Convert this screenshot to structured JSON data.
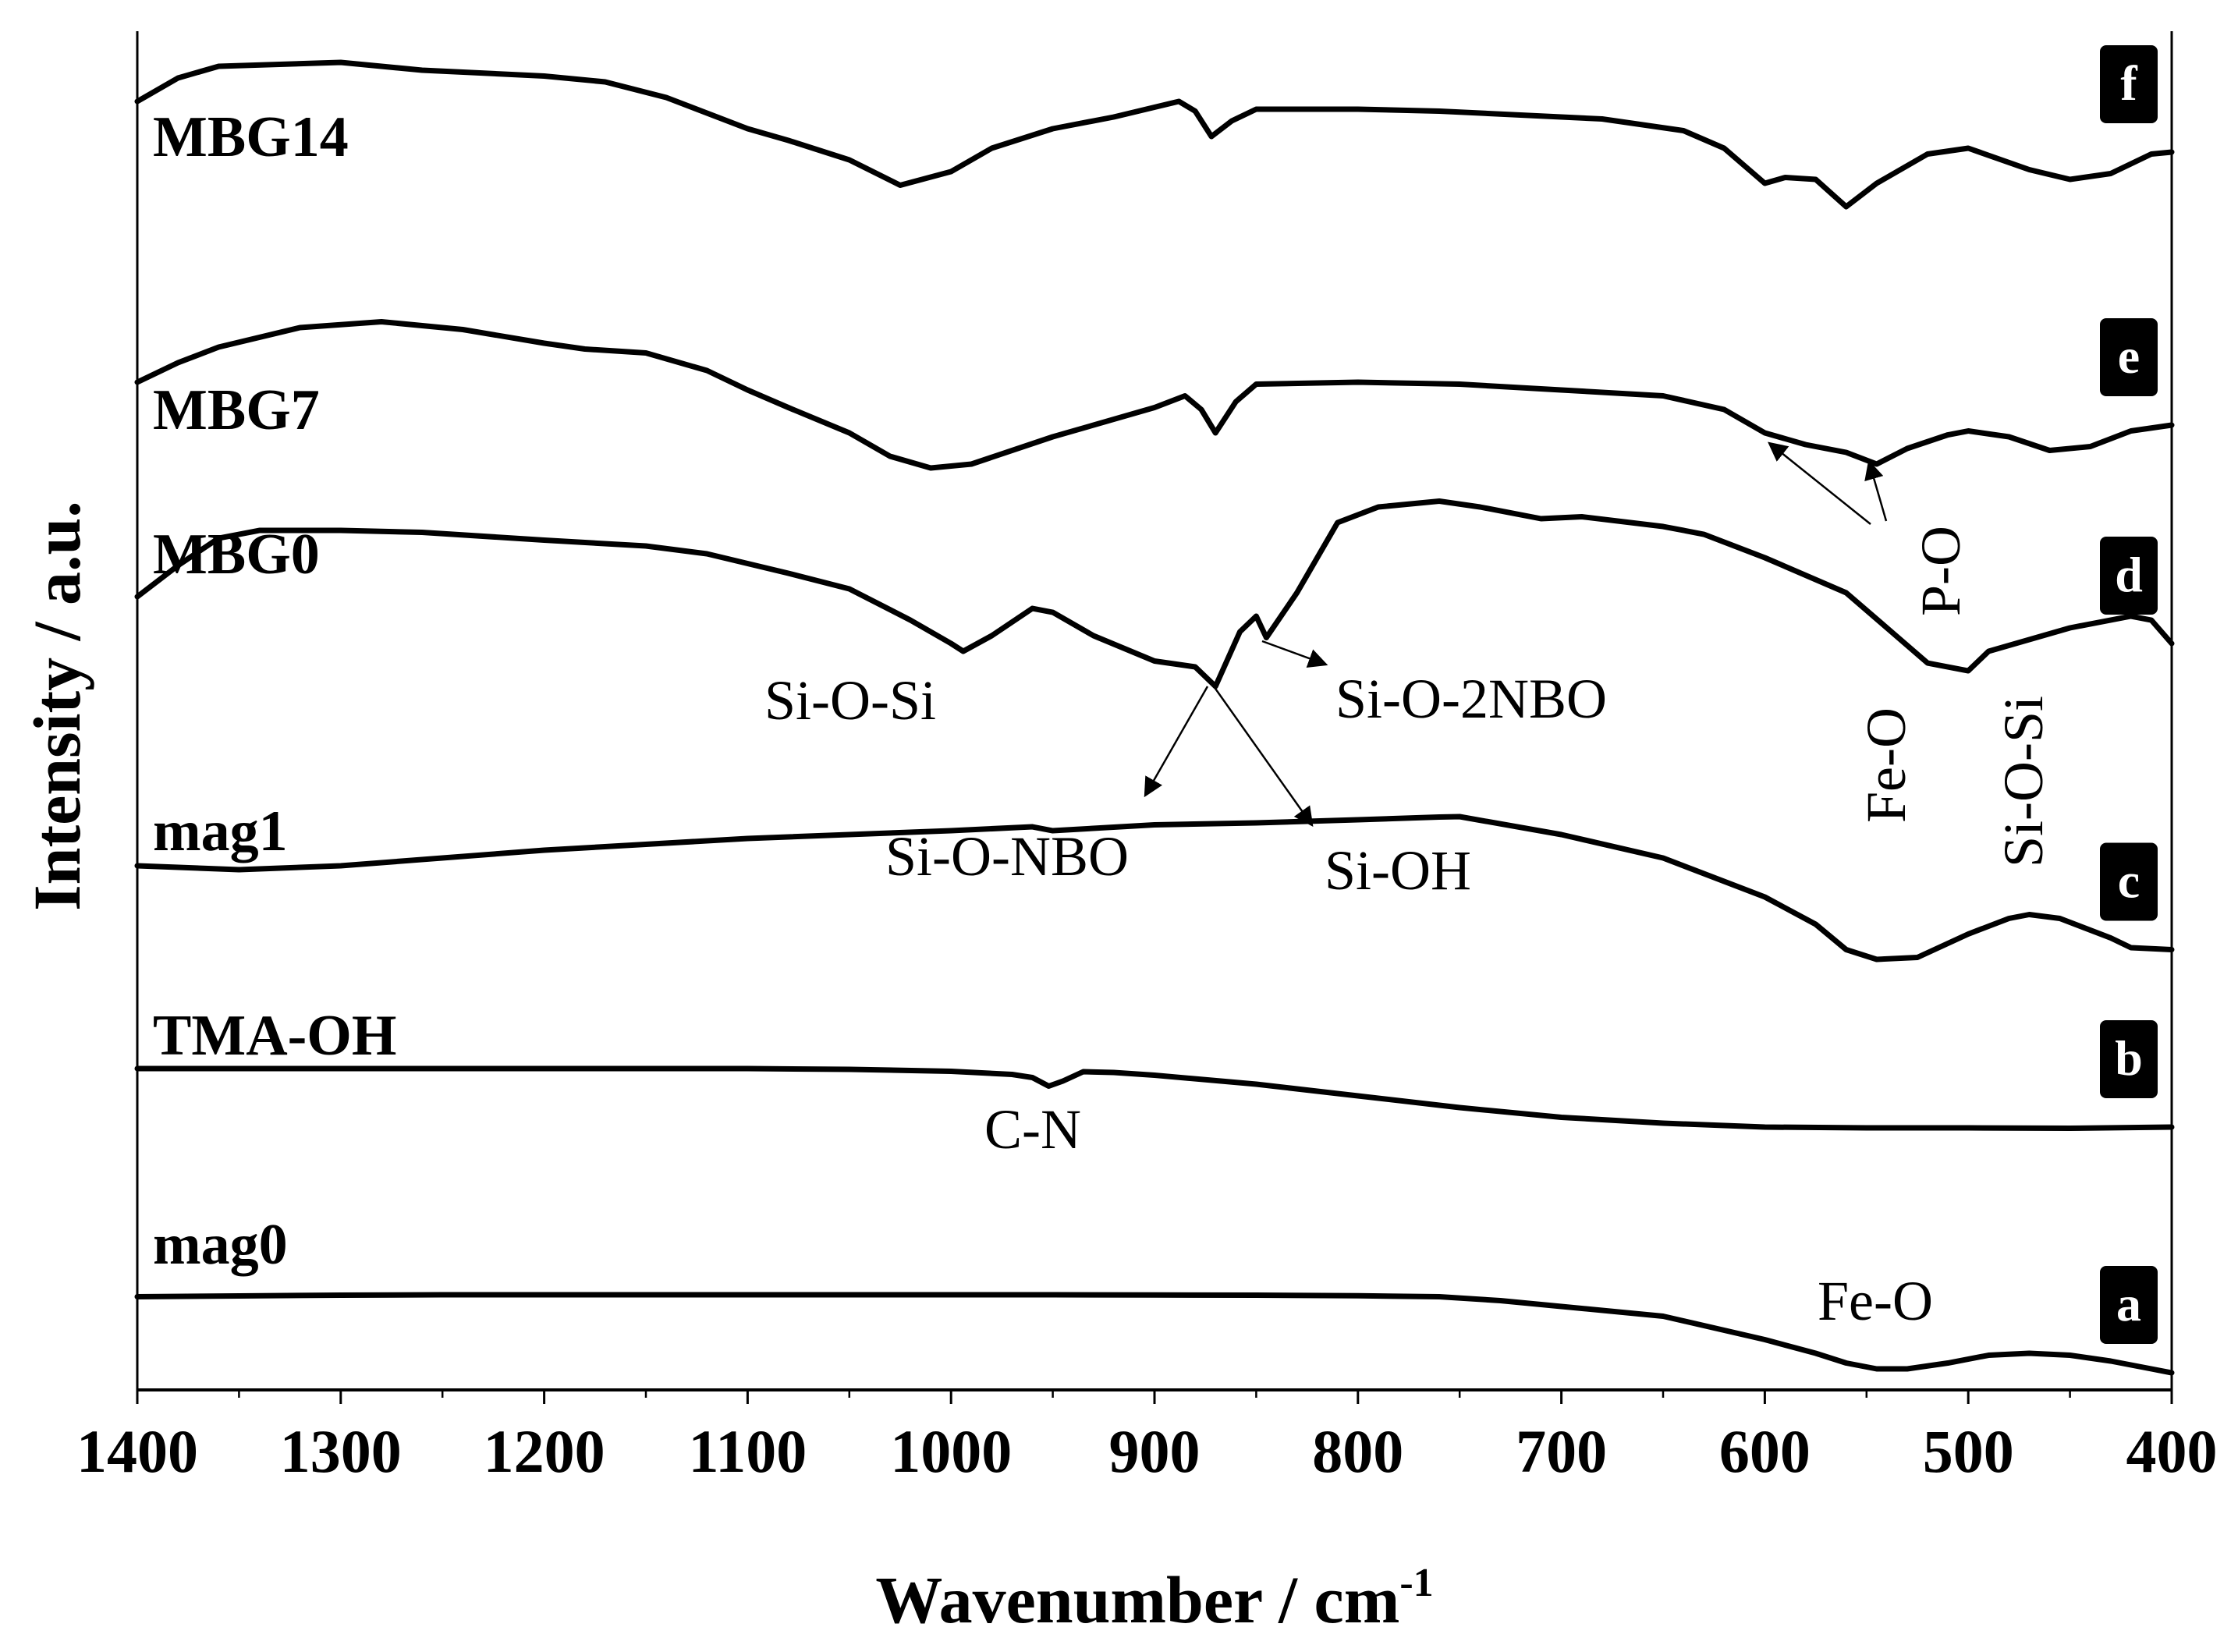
{
  "chart_data": {
    "type": "line",
    "xlabel": "Wavenumber / cm",
    "xlabel_sup": "-1",
    "ylabel": "Intensity / a.u.",
    "xlim": [
      1400,
      400
    ],
    "x_reversed": true,
    "x_ticks": [
      "1400",
      "1300",
      "1200",
      "1100",
      "1000",
      "900",
      "800",
      "700",
      "600",
      "500",
      "400"
    ],
    "x_minor_step": 50,
    "y_ticks_shown": false,
    "grid": false,
    "series": [
      {
        "name": "mag0",
        "badge": "a",
        "points": [
          [
            1400,
            -2.5
          ],
          [
            1350,
            -2.7
          ],
          [
            1300,
            -2.9
          ],
          [
            1250,
            -3.0
          ],
          [
            1200,
            -3.0
          ],
          [
            1100,
            -3.0
          ],
          [
            1000,
            -3.0
          ],
          [
            950,
            -3.0
          ],
          [
            900,
            -2.95
          ],
          [
            850,
            -2.9
          ],
          [
            800,
            -2.75
          ],
          [
            760,
            -2.5
          ],
          [
            730,
            -1.5
          ],
          [
            700,
            0.0
          ],
          [
            650,
            2.5
          ],
          [
            600,
            8.5
          ],
          [
            575,
            12.0
          ],
          [
            560,
            14.5
          ],
          [
            545,
            16.0
          ],
          [
            530,
            16.0
          ],
          [
            510,
            14.5
          ],
          [
            490,
            12.5
          ],
          [
            470,
            12.0
          ],
          [
            450,
            12.5
          ],
          [
            430,
            14.0
          ],
          [
            410,
            16.0
          ],
          [
            400,
            17.0
          ]
        ]
      },
      {
        "name": "TMA-OH",
        "badge": "b",
        "points": [
          [
            1400,
            -2.0
          ],
          [
            1300,
            -2.0
          ],
          [
            1200,
            -2.0
          ],
          [
            1100,
            -2.0
          ],
          [
            1050,
            -1.8
          ],
          [
            1000,
            -1.3
          ],
          [
            970,
            -0.5
          ],
          [
            960,
            0.3
          ],
          [
            952,
            2.5
          ],
          [
            945,
            1.2
          ],
          [
            935,
            -1.2
          ],
          [
            920,
            -1.0
          ],
          [
            900,
            -0.3
          ],
          [
            850,
            2.0
          ],
          [
            800,
            5.0
          ],
          [
            750,
            8.0
          ],
          [
            700,
            10.5
          ],
          [
            650,
            12.0
          ],
          [
            600,
            13.0
          ],
          [
            550,
            13.2
          ],
          [
            500,
            13.2
          ],
          [
            450,
            13.3
          ],
          [
            400,
            13.0
          ]
        ]
      },
      {
        "name": "mag1",
        "badge": "c",
        "points": [
          [
            1400,
            5.0
          ],
          [
            1350,
            6.0
          ],
          [
            1300,
            5.0
          ],
          [
            1200,
            1.0
          ],
          [
            1100,
            -2.0
          ],
          [
            1000,
            -4.0
          ],
          [
            960,
            -5.0
          ],
          [
            950,
            -4.0
          ],
          [
            900,
            -5.5
          ],
          [
            850,
            -6.0
          ],
          [
            800,
            -6.8
          ],
          [
            760,
            -7.5
          ],
          [
            750,
            -7.6
          ],
          [
            700,
            -3.0
          ],
          [
            650,
            3.0
          ],
          [
            600,
            13.0
          ],
          [
            575,
            20.0
          ],
          [
            560,
            26.5
          ],
          [
            545,
            29.0
          ],
          [
            525,
            28.5
          ],
          [
            500,
            22.5
          ],
          [
            480,
            18.5
          ],
          [
            470,
            17.5
          ],
          [
            455,
            18.5
          ],
          [
            430,
            23.5
          ],
          [
            420,
            26.0
          ],
          [
            400,
            26.5
          ]
        ]
      },
      {
        "name": "MBG0",
        "badge": "d",
        "points": [
          [
            1400,
            6.0
          ],
          [
            1380,
            -2.0
          ],
          [
            1360,
            -9.0
          ],
          [
            1340,
            -11.0
          ],
          [
            1300,
            -11.0
          ],
          [
            1260,
            -10.5
          ],
          [
            1200,
            -8.5
          ],
          [
            1150,
            -7.0
          ],
          [
            1120,
            -5.0
          ],
          [
            1080,
            0.0
          ],
          [
            1050,
            4.0
          ],
          [
            1020,
            12.0
          ],
          [
            1000,
            18.0
          ],
          [
            994,
            20.0
          ],
          [
            980,
            16.0
          ],
          [
            960,
            9.0
          ],
          [
            950,
            10.0
          ],
          [
            930,
            16.0
          ],
          [
            900,
            22.5
          ],
          [
            880,
            24.0
          ],
          [
            870,
            29.0
          ],
          [
            858,
            15.0
          ],
          [
            850,
            11.0
          ],
          [
            845,
            16.5
          ],
          [
            830,
            5.0
          ],
          [
            810,
            -13.0
          ],
          [
            790,
            -17.0
          ],
          [
            760,
            -18.5
          ],
          [
            740,
            -17.0
          ],
          [
            710,
            -14.0
          ],
          [
            690,
            -14.5
          ],
          [
            650,
            -12.0
          ],
          [
            630,
            -10.0
          ],
          [
            600,
            -4.0
          ],
          [
            560,
            5.0
          ],
          [
            540,
            14.0
          ],
          [
            520,
            23.0
          ],
          [
            510,
            24.0
          ],
          [
            500,
            25.0
          ],
          [
            490,
            20.0
          ],
          [
            470,
            17.0
          ],
          [
            450,
            14.0
          ],
          [
            420,
            11.0
          ],
          [
            410,
            12.0
          ],
          [
            400,
            18.0
          ]
        ]
      },
      {
        "name": "MBG7",
        "badge": "e",
        "points": [
          [
            1400,
            -4.0
          ],
          [
            1380,
            -9.0
          ],
          [
            1360,
            -13.0
          ],
          [
            1320,
            -18.0
          ],
          [
            1280,
            -19.5
          ],
          [
            1240,
            -17.5
          ],
          [
            1200,
            -14.0
          ],
          [
            1180,
            -12.5
          ],
          [
            1150,
            -11.5
          ],
          [
            1120,
            -7.0
          ],
          [
            1100,
            -2.0
          ],
          [
            1080,
            2.5
          ],
          [
            1050,
            9.0
          ],
          [
            1030,
            15.0
          ],
          [
            1010,
            18.0
          ],
          [
            990,
            17.0
          ],
          [
            950,
            10.0
          ],
          [
            900,
            2.5
          ],
          [
            885,
            -0.5
          ],
          [
            877,
            3.0
          ],
          [
            870,
            9.0
          ],
          [
            860,
            1.0
          ],
          [
            850,
            -3.5
          ],
          [
            800,
            -4.0
          ],
          [
            750,
            -3.5
          ],
          [
            700,
            -2.0
          ],
          [
            650,
            -0.5
          ],
          [
            620,
            3.0
          ],
          [
            600,
            9.0
          ],
          [
            580,
            12.0
          ],
          [
            560,
            14.0
          ],
          [
            545,
            17.0
          ],
          [
            530,
            13.0
          ],
          [
            510,
            9.5
          ],
          [
            500,
            8.5
          ],
          [
            480,
            10.0
          ],
          [
            460,
            13.5
          ],
          [
            440,
            12.5
          ],
          [
            420,
            8.5
          ],
          [
            400,
            7.0
          ]
        ]
      },
      {
        "name": "MBG14",
        "badge": "f",
        "points": [
          [
            1400,
            -7.0
          ],
          [
            1380,
            -13.0
          ],
          [
            1360,
            -16.0
          ],
          [
            1300,
            -17.0
          ],
          [
            1260,
            -15.0
          ],
          [
            1200,
            -13.5
          ],
          [
            1170,
            -12.0
          ],
          [
            1140,
            -8.0
          ],
          [
            1100,
            0.0
          ],
          [
            1080,
            3.0
          ],
          [
            1050,
            8.0
          ],
          [
            1025,
            14.5
          ],
          [
            1000,
            11.0
          ],
          [
            980,
            5.0
          ],
          [
            950,
            0.0
          ],
          [
            920,
            -3.0
          ],
          [
            888,
            -7.0
          ],
          [
            880,
            -4.5
          ],
          [
            872,
            2.0
          ],
          [
            862,
            -2.0
          ],
          [
            850,
            -5.0
          ],
          [
            800,
            -5.0
          ],
          [
            760,
            -4.5
          ],
          [
            720,
            -3.5
          ],
          [
            680,
            -2.5
          ],
          [
            640,
            0.5
          ],
          [
            620,
            5.0
          ],
          [
            600,
            14.0
          ],
          [
            590,
            12.5
          ],
          [
            575,
            13.0
          ],
          [
            560,
            20.0
          ],
          [
            545,
            14.0
          ],
          [
            520,
            6.5
          ],
          [
            500,
            5.0
          ],
          [
            470,
            10.5
          ],
          [
            450,
            13.0
          ],
          [
            430,
            11.5
          ],
          [
            410,
            6.5
          ],
          [
            400,
            6.0
          ]
        ]
      }
    ],
    "annotations": [
      "Si-O-Si",
      "Si-O-2NBO",
      "Si-O-NBO",
      "Si-OH",
      "Fe-O",
      "P-O",
      "Fe-O",
      "Si-O-Si",
      "C-N"
    ]
  }
}
